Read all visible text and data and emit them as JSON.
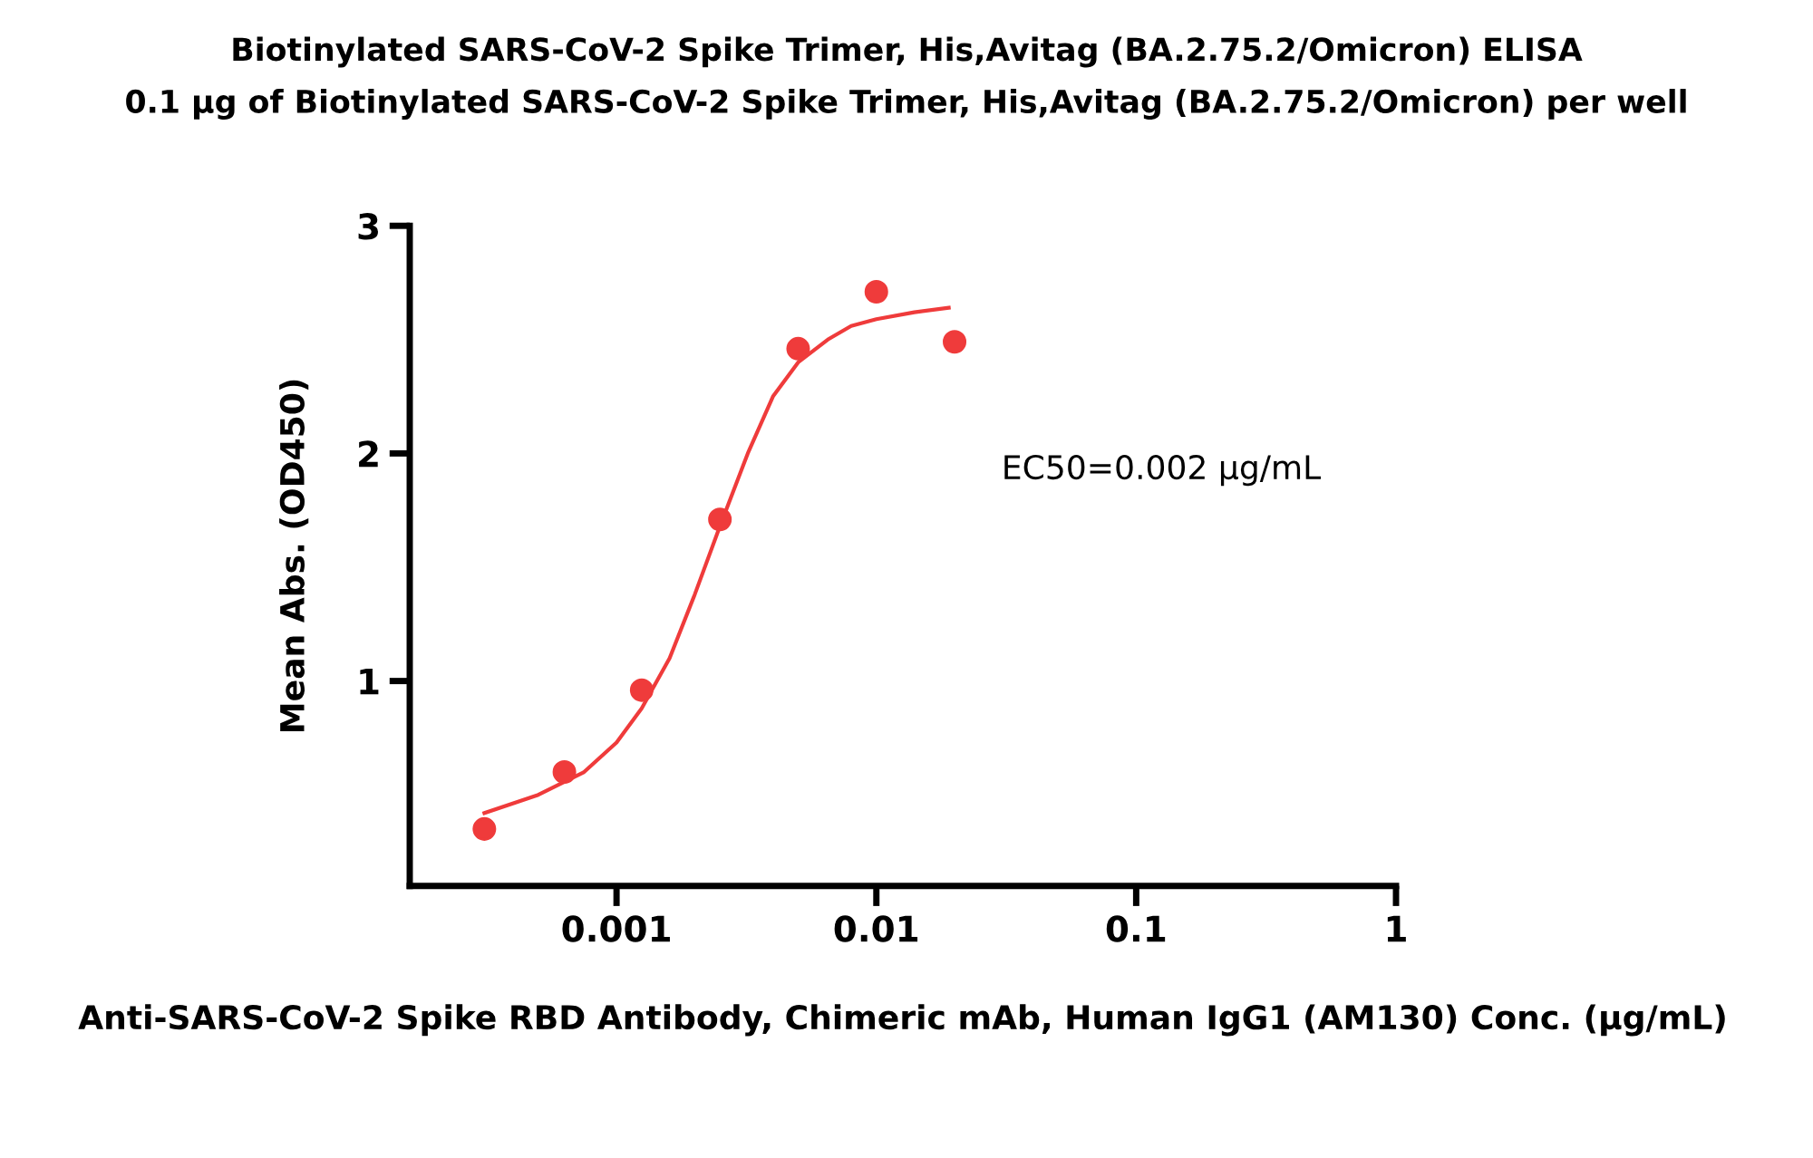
{
  "chart_data": {
    "type": "scatter",
    "title": "Biotinylated SARS-CoV-2 Spike Trimer, His,Avitag (BA.2.75.2/Omicron) ELISA",
    "subtitle": "0.1 µg of Biotinylated SARS-CoV-2 Spike Trimer, His,Avitag (BA.2.75.2/Omicron) per well",
    "xlabel": "Anti-SARS-CoV-2 Spike RBD Antibody, Chimeric mAb, Human IgG1 (AM130) Conc. (µg/mL)",
    "ylabel": "Mean Abs. (OD450)",
    "annotations": [
      "EC50=0.002 µg/mL"
    ],
    "log": "x",
    "grid": false,
    "marker": "circle",
    "xlim": [
      0.00016,
      1
    ],
    "xticks": [
      0.001,
      0.01,
      0.1,
      1
    ],
    "ylim": [
      0.1,
      3
    ],
    "yticks": [
      1,
      2,
      3
    ],
    "series": [
      {
        "color": "#ef3b3b",
        "x": [
          0.00031,
          0.00063,
          0.00125,
          0.0025,
          0.005,
          0.01,
          0.02
        ],
        "values": [
          0.35,
          0.6,
          0.96,
          1.71,
          2.46,
          2.71,
          2.49
        ]
      },
      {
        "type": "line",
        "color": "#ef3b3b",
        "marker": "none",
        "x": [
          0.00031,
          0.0005,
          0.00075,
          0.001,
          0.00125,
          0.0016,
          0.002,
          0.0025,
          0.0032,
          0.004,
          0.005,
          0.0065,
          0.008,
          0.01,
          0.014,
          0.019
        ],
        "values": [
          0.42,
          0.5,
          0.6,
          0.73,
          0.88,
          1.1,
          1.38,
          1.68,
          2.0,
          2.25,
          2.4,
          2.5,
          2.56,
          2.59,
          2.62,
          2.64
        ]
      }
    ]
  }
}
